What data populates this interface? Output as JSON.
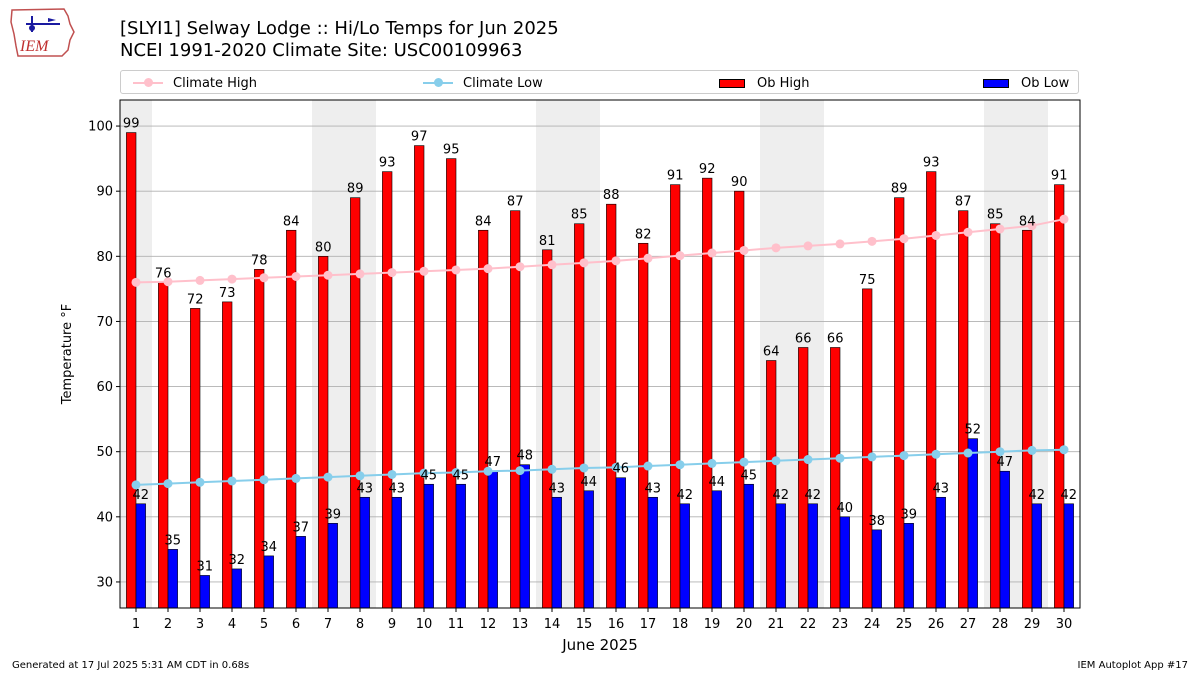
{
  "title_line1": "[SLYI1] Selway Lodge :: Hi/Lo Temps for Jun 2025",
  "title_line2": "NCEI 1991-2020 Climate Site: USC00109963",
  "logo_text": "IEM",
  "footer_left": "Generated at 17 Jul 2025 5:31 AM CDT in 0.68s",
  "footer_right": "IEM Autoplot App #17",
  "colors": {
    "ob_high": "#ff0000",
    "ob_low": "#0000ff",
    "climate_high": "#ffc0cb",
    "climate_low": "#87ceeb",
    "weekend_shade": "#eeeeee",
    "grid": "#b0b0b0"
  },
  "legend": [
    {
      "label": "Climate High",
      "kind": "line",
      "color": "#ffc0cb"
    },
    {
      "label": "Climate Low",
      "kind": "line",
      "color": "#87ceeb"
    },
    {
      "label": "Ob High",
      "kind": "bar",
      "color": "#ff0000"
    },
    {
      "label": "Ob Low",
      "kind": "bar",
      "color": "#0000ff"
    }
  ],
  "chart_data": {
    "type": "bar",
    "xlabel": "June 2025",
    "ylabel": "Temperature °F",
    "ylim": [
      26,
      104
    ],
    "yticks": [
      30,
      40,
      50,
      60,
      70,
      80,
      90,
      100
    ],
    "grid": "horizontal",
    "legend_position": "top",
    "categories": [
      1,
      2,
      3,
      4,
      5,
      6,
      7,
      8,
      9,
      10,
      11,
      12,
      13,
      14,
      15,
      16,
      17,
      18,
      19,
      20,
      21,
      22,
      23,
      24,
      25,
      26,
      27,
      28,
      29,
      30
    ],
    "shaded_days": [
      1,
      7,
      8,
      14,
      15,
      21,
      22,
      28,
      29
    ],
    "series": [
      {
        "name": "Ob High",
        "type": "bar",
        "values": [
          99,
          76,
          72,
          73,
          78,
          84,
          80,
          89,
          93,
          97,
          95,
          84,
          87,
          81,
          85,
          88,
          82,
          91,
          92,
          90,
          64,
          66,
          66,
          75,
          89,
          93,
          87,
          85,
          84,
          91
        ]
      },
      {
        "name": "Ob Low",
        "type": "bar",
        "values": [
          42,
          35,
          31,
          32,
          34,
          37,
          39,
          43,
          43,
          45,
          45,
          47,
          48,
          43,
          44,
          46,
          43,
          42,
          44,
          45,
          42,
          42,
          40,
          38,
          39,
          43,
          52,
          47,
          42,
          42
        ]
      },
      {
        "name": "Climate High",
        "type": "line",
        "values": [
          76.0,
          76.1,
          76.3,
          76.5,
          76.7,
          76.9,
          77.1,
          77.3,
          77.5,
          77.7,
          77.9,
          78.1,
          78.4,
          78.7,
          79.0,
          79.3,
          79.7,
          80.1,
          80.5,
          80.9,
          81.3,
          81.6,
          81.9,
          82.3,
          82.7,
          83.2,
          83.7,
          84.2,
          84.7,
          85.7
        ]
      },
      {
        "name": "Climate Low",
        "type": "line",
        "values": [
          44.9,
          45.1,
          45.3,
          45.5,
          45.7,
          45.9,
          46.1,
          46.3,
          46.5,
          46.7,
          46.8,
          47.0,
          47.1,
          47.3,
          47.5,
          47.6,
          47.8,
          48.0,
          48.2,
          48.4,
          48.6,
          48.8,
          49.0,
          49.2,
          49.4,
          49.6,
          49.8,
          50.0,
          50.2,
          50.3
        ]
      }
    ]
  }
}
